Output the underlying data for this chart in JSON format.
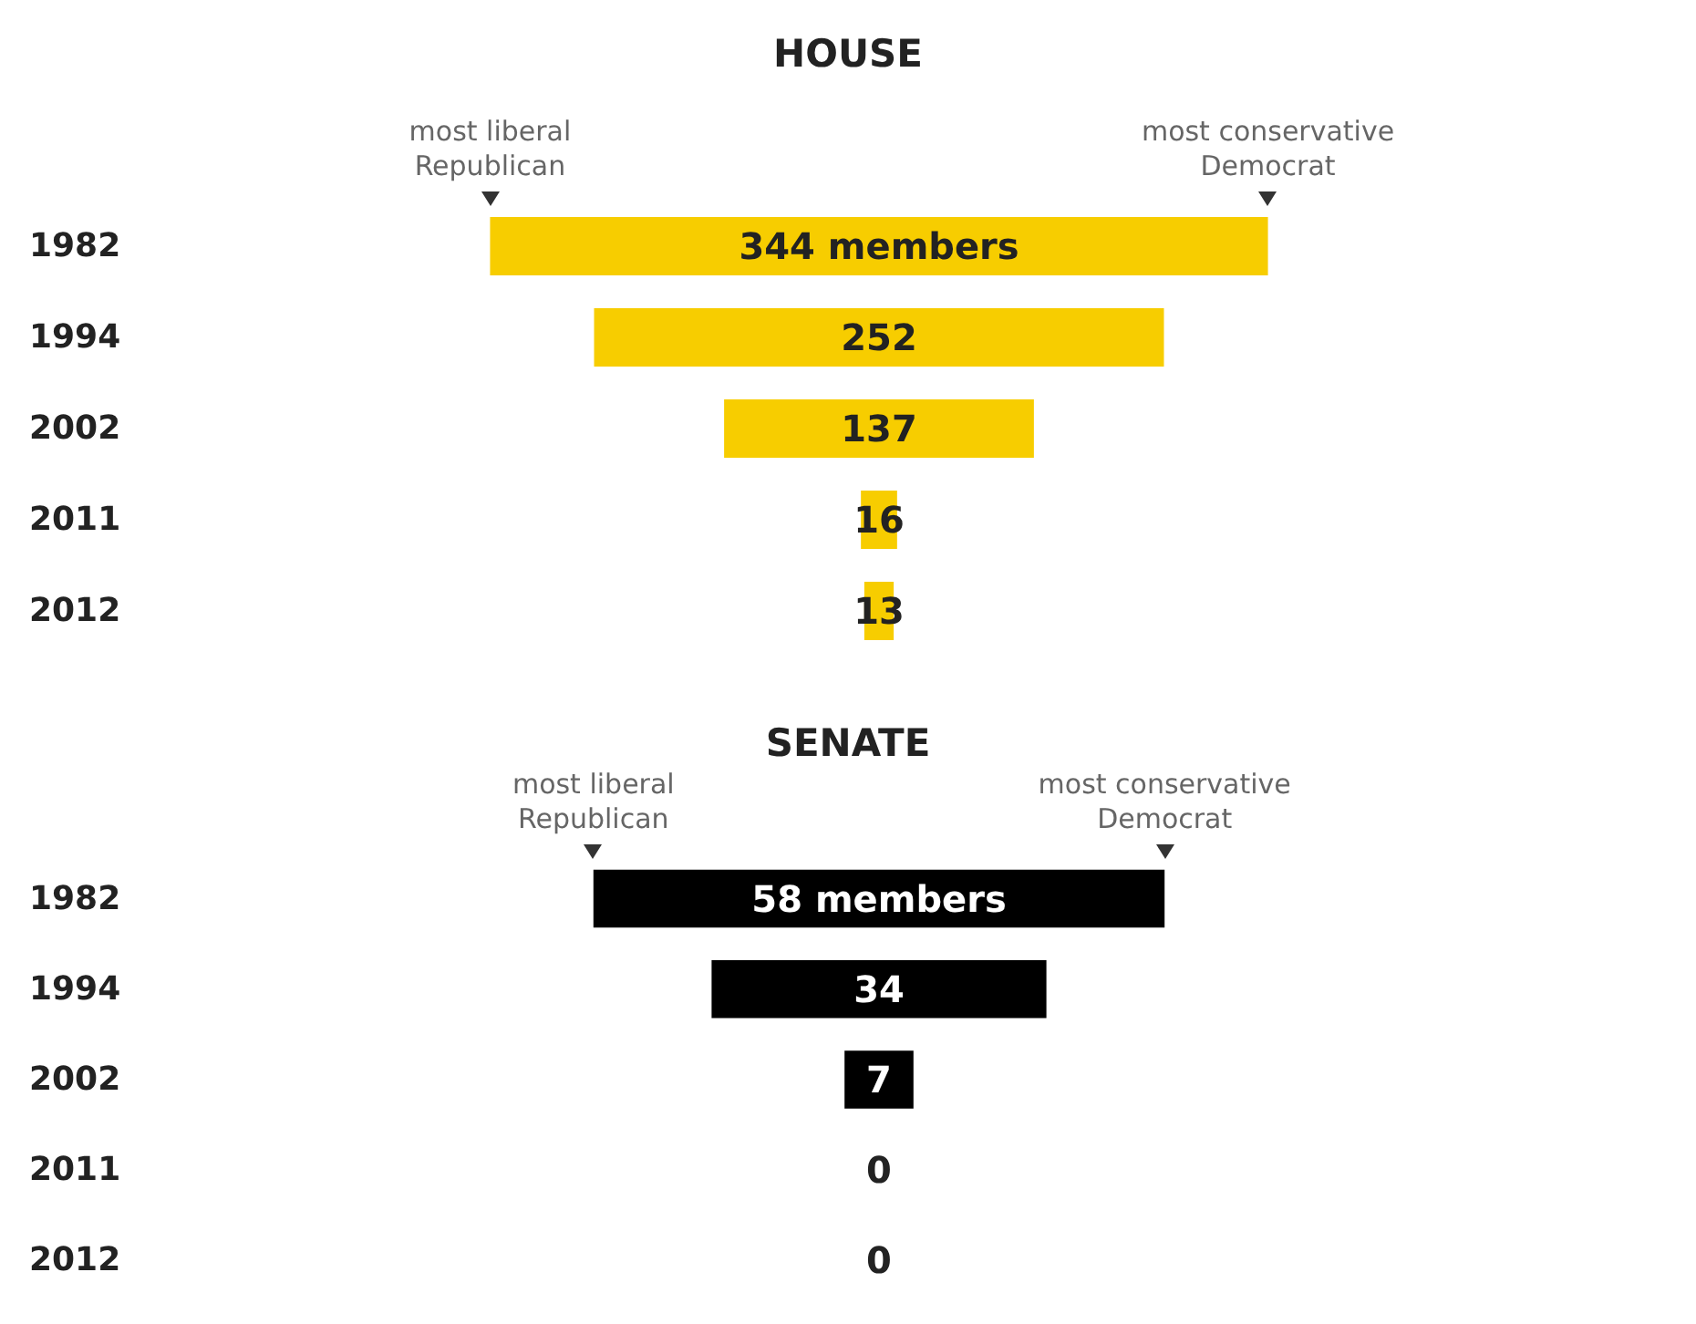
{
  "chart_data": [
    {
      "type": "other",
      "title": "HOUSE",
      "categories": [
        "1982",
        "1994",
        "2002",
        "2011",
        "2012"
      ],
      "values": [
        344,
        252,
        137,
        16,
        13
      ],
      "value_labels": [
        "344 members",
        "252",
        "137",
        "16",
        "13"
      ],
      "color": "#f7cd00",
      "annotations": [
        "most liberal Republican",
        "most conservative Democrat"
      ]
    },
    {
      "type": "other",
      "title": "SENATE",
      "categories": [
        "1982",
        "1994",
        "2002",
        "2011",
        "2012"
      ],
      "values": [
        58,
        34,
        7,
        0,
        0
      ],
      "value_labels": [
        "58 members",
        "34",
        "7",
        "0",
        "0"
      ],
      "color": "#000000",
      "annotations": [
        "most liberal Republican",
        "most conservative Democrat"
      ]
    }
  ]
}
